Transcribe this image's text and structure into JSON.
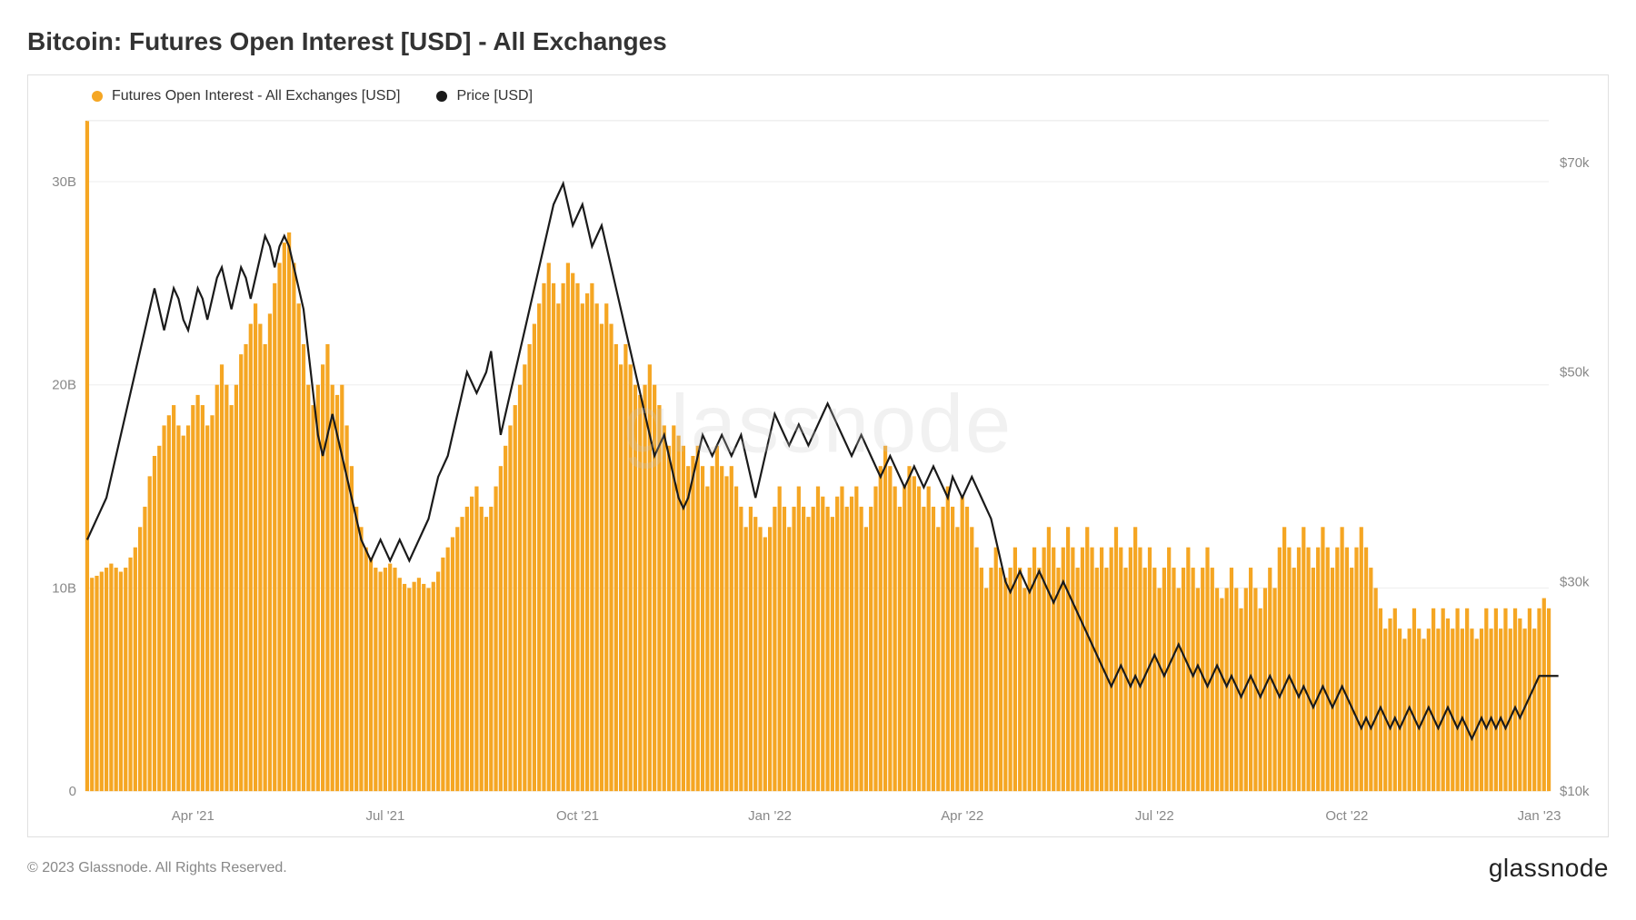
{
  "title": "Bitcoin: Futures Open Interest [USD] - All Exchanges",
  "legend": {
    "series1": "Futures Open Interest - All Exchanges [USD]",
    "series2": "Price [USD]"
  },
  "watermark": "glassnode",
  "footer": {
    "copyright": "© 2023 Glassnode. All Rights Reserved.",
    "brand": "glassnode"
  },
  "chart": {
    "background_color": "#ffffff",
    "grid_color": "#eeeeee",
    "axis_label_color": "#888888",
    "axis_label_fontsize": 15,
    "bar_color": "#f5a623",
    "line_color": "#1a1a1a",
    "line_width": 2.2,
    "left_axis": {
      "min": 0,
      "max": 33,
      "ticks": [
        {
          "v": 0,
          "l": "0"
        },
        {
          "v": 10,
          "l": "10B"
        },
        {
          "v": 20,
          "l": "20B"
        },
        {
          "v": 30,
          "l": "30B"
        }
      ]
    },
    "right_axis": {
      "min": 10,
      "max": 74,
      "ticks": [
        {
          "v": 10,
          "l": "$10k"
        },
        {
          "v": 30,
          "l": "$30k"
        },
        {
          "v": 50,
          "l": "$50k"
        },
        {
          "v": 70,
          "l": "$70k"
        }
      ]
    },
    "x_axis": {
      "ticks": [
        {
          "i": 22,
          "l": "Apr '21"
        },
        {
          "i": 62,
          "l": "Jul '21"
        },
        {
          "i": 102,
          "l": "Oct '21"
        },
        {
          "i": 142,
          "l": "Jan '22"
        },
        {
          "i": 182,
          "l": "Apr '22"
        },
        {
          "i": 222,
          "l": "Jul '22"
        },
        {
          "i": 262,
          "l": "Oct '22"
        },
        {
          "i": 302,
          "l": "Jan '23"
        }
      ]
    },
    "bars": [
      33,
      10.5,
      10.6,
      10.8,
      11,
      11.2,
      11,
      10.8,
      11,
      11.5,
      12,
      13,
      14,
      15.5,
      16.5,
      17,
      18,
      18.5,
      19,
      18,
      17.5,
      18,
      19,
      19.5,
      19,
      18,
      18.5,
      20,
      21,
      20,
      19,
      20,
      21.5,
      22,
      23,
      24,
      23,
      22,
      23.5,
      25,
      26,
      27,
      27.5,
      26,
      24,
      22,
      20,
      19,
      20,
      21,
      22,
      20,
      19.5,
      20,
      18,
      16,
      14,
      13,
      12,
      11.5,
      11,
      10.8,
      11,
      11.2,
      11,
      10.5,
      10.2,
      10,
      10.3,
      10.5,
      10.2,
      10,
      10.3,
      10.8,
      11.5,
      12,
      12.5,
      13,
      13.5,
      14,
      14.5,
      15,
      14,
      13.5,
      14,
      15,
      16,
      17,
      18,
      19,
      20,
      21,
      22,
      23,
      24,
      25,
      26,
      25,
      24,
      25,
      26,
      25.5,
      25,
      24,
      24.5,
      25,
      24,
      23,
      24,
      23,
      22,
      21,
      22,
      21,
      20,
      19.5,
      20,
      21,
      20,
      19,
      18,
      17,
      18,
      17.5,
      17,
      16,
      16.5,
      17,
      16,
      15,
      16,
      17,
      16,
      15.5,
      16,
      15,
      14,
      13,
      14,
      13.5,
      13,
      12.5,
      13,
      14,
      15,
      14,
      13,
      14,
      15,
      14,
      13.5,
      14,
      15,
      14.5,
      14,
      13.5,
      14.5,
      15,
      14,
      14.5,
      15,
      14,
      13,
      14,
      15,
      16,
      17,
      16,
      15,
      14,
      15,
      16,
      15.5,
      15,
      14,
      15,
      14,
      13,
      14,
      15,
      14,
      13,
      14.5,
      14,
      13,
      12,
      11,
      10,
      11,
      12,
      11,
      10.5,
      11,
      12,
      11,
      10,
      11,
      12,
      11,
      12,
      13,
      12,
      11,
      12,
      13,
      12,
      11,
      12,
      13,
      12,
      11,
      12,
      11,
      12,
      13,
      12,
      11,
      12,
      13,
      12,
      11,
      12,
      11,
      10,
      11,
      12,
      11,
      10,
      11,
      12,
      11,
      10,
      11,
      12,
      11,
      10,
      9.5,
      10,
      11,
      10,
      9,
      10,
      11,
      10,
      9,
      10,
      11,
      10,
      12,
      13,
      12,
      11,
      12,
      13,
      12,
      11,
      12,
      13,
      12,
      11,
      12,
      13,
      12,
      11,
      12,
      13,
      12,
      11,
      10,
      9,
      8,
      8.5,
      9,
      8,
      7.5,
      8,
      9,
      8,
      7.5,
      8,
      9,
      8,
      9,
      8.5,
      8,
      9,
      8,
      9,
      8,
      7.5,
      8,
      9,
      8,
      9,
      8,
      9,
      8,
      9,
      8.5,
      8,
      9,
      8,
      9,
      9.5,
      9
    ],
    "price": [
      34,
      35,
      36,
      37,
      38,
      40,
      42,
      44,
      46,
      48,
      50,
      52,
      54,
      56,
      58,
      56,
      54,
      56,
      58,
      57,
      55,
      54,
      56,
      58,
      57,
      55,
      57,
      59,
      60,
      58,
      56,
      58,
      60,
      59,
      57,
      59,
      61,
      63,
      62,
      60,
      62,
      63,
      62,
      60,
      58,
      56,
      52,
      48,
      44,
      42,
      44,
      46,
      44,
      42,
      40,
      38,
      36,
      34,
      33,
      32,
      33,
      34,
      33,
      32,
      33,
      34,
      33,
      32,
      33,
      34,
      35,
      36,
      38,
      40,
      41,
      42,
      44,
      46,
      48,
      50,
      49,
      48,
      49,
      50,
      52,
      48,
      44,
      46,
      48,
      50,
      52,
      54,
      56,
      58,
      60,
      62,
      64,
      66,
      67,
      68,
      66,
      64,
      65,
      66,
      64,
      62,
      63,
      64,
      62,
      60,
      58,
      56,
      54,
      52,
      50,
      48,
      46,
      44,
      42,
      43,
      44,
      42,
      40,
      38,
      37,
      38,
      40,
      42,
      44,
      43,
      42,
      43,
      44,
      43,
      42,
      43,
      44,
      42,
      40,
      38,
      40,
      42,
      44,
      46,
      45,
      44,
      43,
      44,
      45,
      44,
      43,
      44,
      45,
      46,
      47,
      46,
      45,
      44,
      43,
      42,
      43,
      44,
      43,
      42,
      41,
      40,
      41,
      42,
      41,
      40,
      39,
      40,
      41,
      40,
      39,
      40,
      41,
      40,
      39,
      38,
      40,
      39,
      38,
      39,
      40,
      39,
      38,
      37,
      36,
      34,
      32,
      30,
      29,
      30,
      31,
      30,
      29,
      30,
      31,
      30,
      29,
      28,
      29,
      30,
      29,
      28,
      27,
      26,
      25,
      24,
      23,
      22,
      21,
      20,
      21,
      22,
      21,
      20,
      21,
      20,
      21,
      22,
      23,
      22,
      21,
      22,
      23,
      24,
      23,
      22,
      21,
      22,
      21,
      20,
      21,
      22,
      21,
      20,
      21,
      20,
      19,
      20,
      21,
      20,
      19,
      20,
      21,
      20,
      19,
      20,
      21,
      20,
      19,
      20,
      19,
      18,
      19,
      20,
      19,
      18,
      19,
      20,
      19,
      18,
      17,
      16,
      17,
      16,
      17,
      18,
      17,
      16,
      17,
      16,
      17,
      18,
      17,
      16,
      17,
      18,
      17,
      16,
      17,
      18,
      17,
      16,
      17,
      16,
      15,
      16,
      17,
      16,
      17,
      16,
      17,
      16,
      17,
      18,
      17,
      18,
      19,
      20,
      21,
      21,
      21,
      21,
      21
    ]
  }
}
